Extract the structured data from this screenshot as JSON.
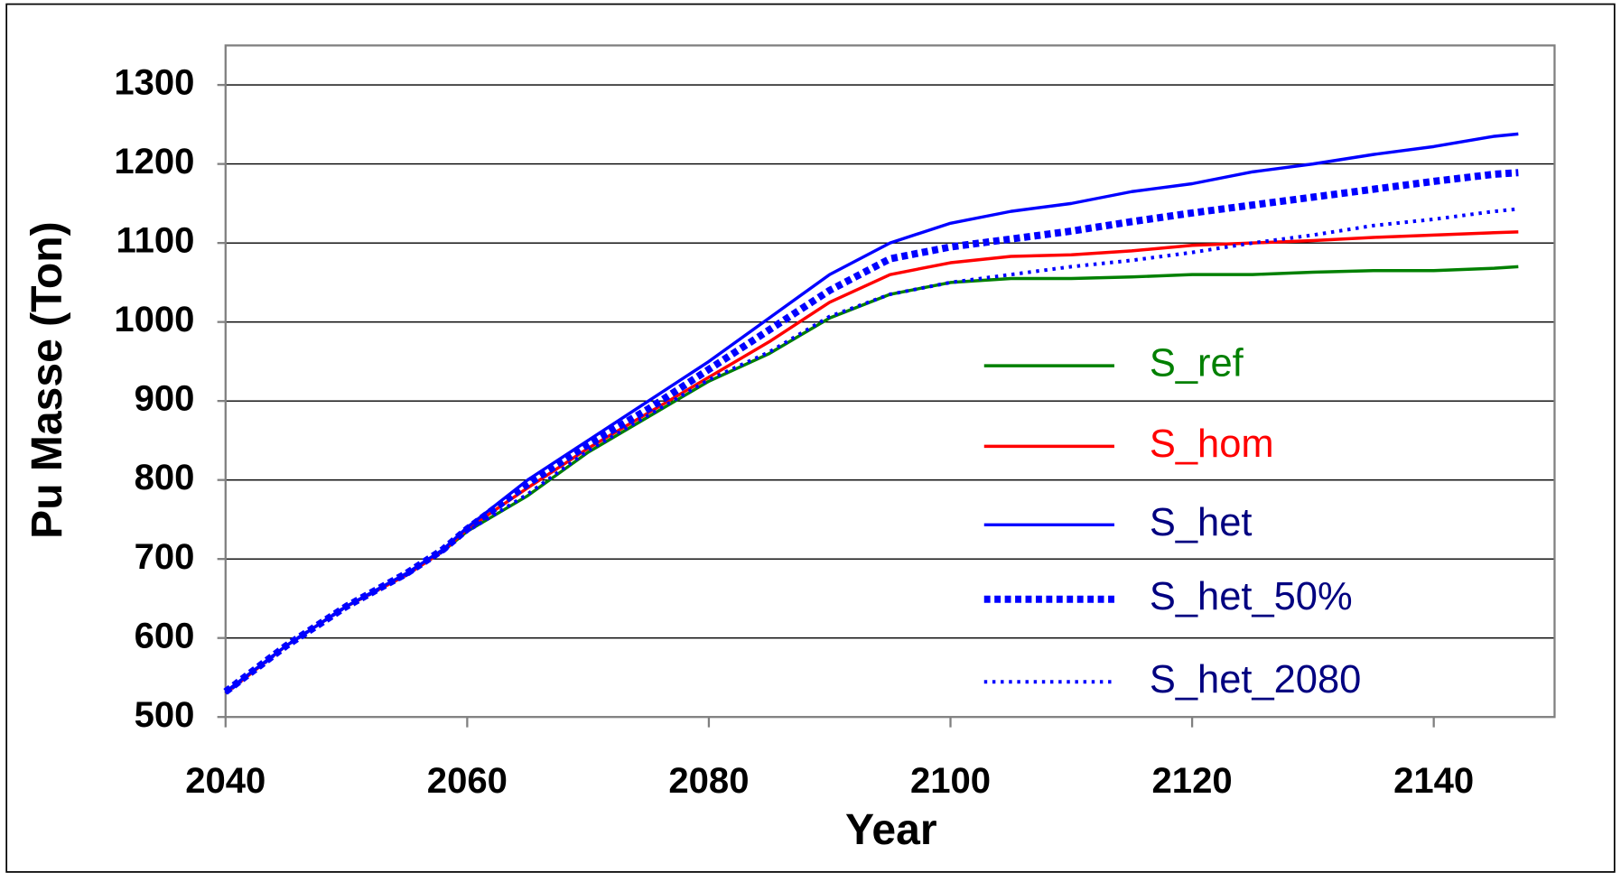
{
  "chart_data": {
    "type": "line",
    "xlabel": "Year",
    "ylabel": "Pu Masse (Ton)",
    "xlim": [
      2040,
      2150
    ],
    "ylim": [
      500,
      1350
    ],
    "xticks": [
      2040,
      2060,
      2080,
      2100,
      2120,
      2140
    ],
    "yticks": [
      500,
      600,
      700,
      800,
      900,
      1000,
      1100,
      1200,
      1300
    ],
    "grid": true,
    "legend": "lower right",
    "x": [
      2040,
      2045,
      2050,
      2055,
      2058,
      2060,
      2065,
      2070,
      2075,
      2080,
      2085,
      2090,
      2095,
      2100,
      2105,
      2110,
      2115,
      2120,
      2125,
      2130,
      2135,
      2140,
      2145,
      2147
    ],
    "series": [
      {
        "name": "S_ref",
        "color": "#008000",
        "label_color": "#008000",
        "style": "solid",
        "values": [
          530,
          590,
          640,
          680,
          710,
          735,
          780,
          835,
          880,
          925,
          960,
          1005,
          1035,
          1050,
          1055,
          1055,
          1057,
          1060,
          1060,
          1063,
          1065,
          1065,
          1068,
          1070
        ]
      },
      {
        "name": "S_hom",
        "color": "#ff0000",
        "label_color": "#ff0000",
        "style": "solid",
        "values": [
          530,
          590,
          640,
          680,
          710,
          738,
          790,
          840,
          885,
          930,
          975,
          1025,
          1060,
          1075,
          1083,
          1085,
          1090,
          1097,
          1100,
          1103,
          1107,
          1110,
          1113,
          1114
        ]
      },
      {
        "name": "S_het",
        "color": "#0000ff",
        "label_color": "#000080",
        "style": "solid",
        "values": [
          532,
          590,
          640,
          682,
          712,
          740,
          800,
          850,
          900,
          950,
          1005,
          1060,
          1100,
          1125,
          1140,
          1150,
          1165,
          1175,
          1190,
          1200,
          1212,
          1222,
          1235,
          1238
        ]
      },
      {
        "name": "S_het_50%",
        "color": "#0000ff",
        "label_color": "#000080",
        "style": "thick-dotted",
        "values": [
          532,
          590,
          640,
          682,
          712,
          738,
          795,
          845,
          890,
          940,
          990,
          1040,
          1080,
          1095,
          1105,
          1115,
          1127,
          1138,
          1148,
          1158,
          1168,
          1178,
          1187,
          1189
        ]
      },
      {
        "name": "S_het_2080",
        "color": "#0000ff",
        "label_color": "#000080",
        "style": "dotted",
        "values": [
          530,
          590,
          640,
          680,
          710,
          735,
          782,
          837,
          882,
          927,
          962,
          1007,
          1035,
          1050,
          1060,
          1070,
          1078,
          1088,
          1100,
          1110,
          1122,
          1130,
          1140,
          1143
        ]
      }
    ]
  }
}
